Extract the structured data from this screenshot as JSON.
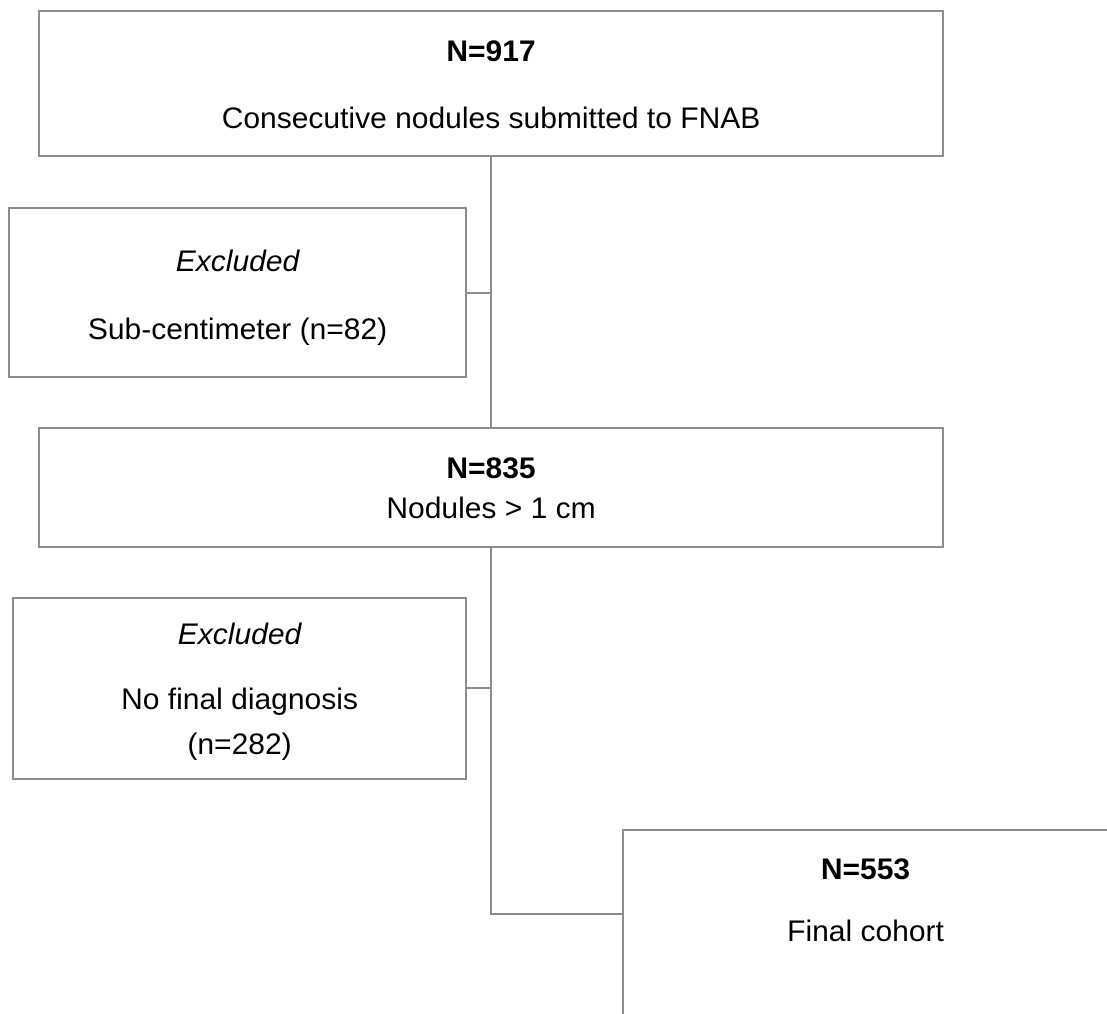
{
  "nodes": [
    {
      "heading": "N=917",
      "lines": [
        "Consecutive nodules submitted to FNAB"
      ]
    },
    {
      "heading": "Excluded",
      "lines": [
        "Sub-centimeter (n=82)"
      ]
    },
    {
      "heading": "N=835",
      "lines": [
        "Nodules > 1 cm"
      ]
    },
    {
      "heading": "Excluded",
      "lines": [
        "No final diagnosis",
        "(n=282)"
      ]
    },
    {
      "heading": "N=553",
      "lines": [
        "Final cohort"
      ]
    }
  ]
}
